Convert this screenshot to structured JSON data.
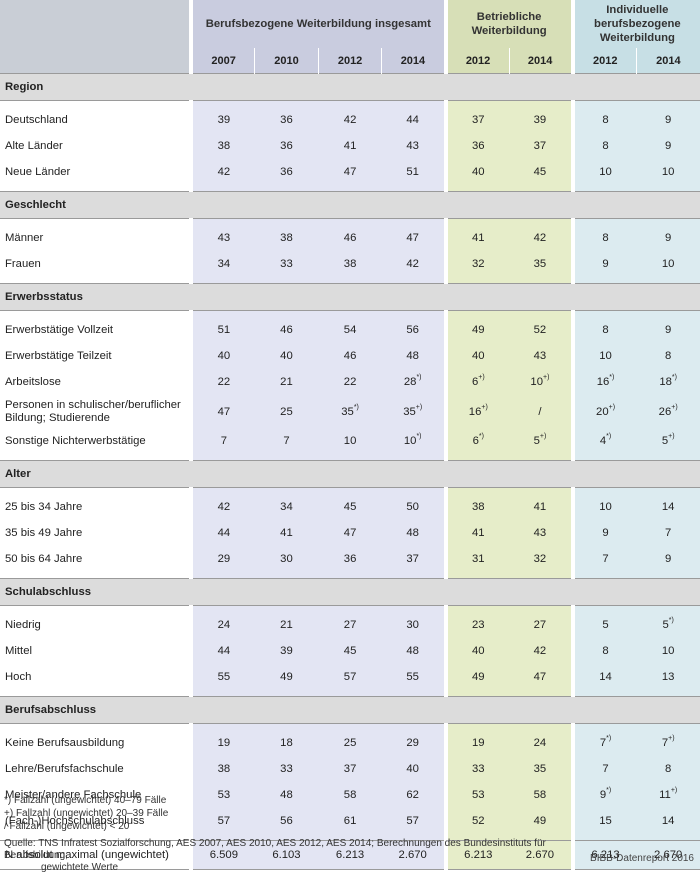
{
  "header": {
    "group1": "Berufsbezogene Weiterbildung insgesamt",
    "group2_line1": "Betriebliche",
    "group2_line2": "Weiterbildung",
    "group3_line1": "Individuelle",
    "group3_line2": "berufsbezogene",
    "group3_line3": "Weiterbildung",
    "years": [
      "2007",
      "2010",
      "2012",
      "2014",
      "2012",
      "2014",
      "2012",
      "2014"
    ]
  },
  "sections": [
    {
      "title": "Region",
      "rows": [
        {
          "label": "Deutschland",
          "values": [
            "39",
            "36",
            "42",
            "44",
            "37",
            "39",
            "8",
            "9"
          ]
        },
        {
          "label": "Alte Länder",
          "values": [
            "38",
            "36",
            "41",
            "43",
            "36",
            "37",
            "8",
            "9"
          ]
        },
        {
          "label": "Neue Länder",
          "values": [
            "42",
            "36",
            "47",
            "51",
            "40",
            "45",
            "10",
            "10"
          ]
        }
      ]
    },
    {
      "title": "Geschlecht",
      "rows": [
        {
          "label": "Männer",
          "values": [
            "43",
            "38",
            "46",
            "47",
            "41",
            "42",
            "8",
            "9"
          ]
        },
        {
          "label": "Frauen",
          "values": [
            "34",
            "33",
            "38",
            "42",
            "32",
            "35",
            "9",
            "10"
          ]
        }
      ]
    },
    {
      "title": "Erwerbsstatus",
      "rows": [
        {
          "label": "Erwerbstätige Vollzeit",
          "values": [
            "51",
            "46",
            "54",
            "56",
            "49",
            "52",
            "8",
            "9"
          ]
        },
        {
          "label": "Erwerbstätige Teilzeit",
          "values": [
            "40",
            "40",
            "46",
            "48",
            "40",
            "43",
            "10",
            "8"
          ]
        },
        {
          "label": "Arbeitslose",
          "values": [
            "22",
            "21",
            "22",
            "28",
            "6",
            "10",
            "16",
            "18"
          ],
          "marks": [
            "",
            "",
            "",
            "*)",
            "+)",
            "+)",
            "*)",
            "*)"
          ]
        },
        {
          "label": "Personen in schulischer/beruflicher Bildung; Studierende",
          "values": [
            "47",
            "25",
            "35",
            "35",
            "16",
            "/",
            "20",
            "26"
          ],
          "marks": [
            "",
            "",
            "*)",
            "+)",
            "+)",
            "",
            "+)",
            "+)"
          ]
        },
        {
          "label": "Sonstige Nichterwerbstätige",
          "values": [
            "7",
            "7",
            "10",
            "10",
            "6",
            "5",
            "4",
            "5"
          ],
          "marks": [
            "",
            "",
            "",
            "*)",
            "*)",
            "+)",
            "*)",
            "+)"
          ]
        }
      ]
    },
    {
      "title": "Alter",
      "rows": [
        {
          "label": "25 bis 34 Jahre",
          "values": [
            "42",
            "34",
            "45",
            "50",
            "38",
            "41",
            "10",
            "14"
          ]
        },
        {
          "label": "35 bis 49 Jahre",
          "values": [
            "44",
            "41",
            "47",
            "48",
            "41",
            "43",
            "9",
            "7"
          ]
        },
        {
          "label": "50 bis 64 Jahre",
          "values": [
            "29",
            "30",
            "36",
            "37",
            "31",
            "32",
            "7",
            "9"
          ]
        }
      ]
    },
    {
      "title": "Schulabschluss",
      "rows": [
        {
          "label": "Niedrig",
          "values": [
            "24",
            "21",
            "27",
            "30",
            "23",
            "27",
            "5",
            "5"
          ],
          "marks": [
            "",
            "",
            "",
            "",
            "",
            "",
            "",
            "*)"
          ]
        },
        {
          "label": "Mittel",
          "values": [
            "44",
            "39",
            "45",
            "48",
            "40",
            "42",
            "8",
            "10"
          ]
        },
        {
          "label": "Hoch",
          "values": [
            "55",
            "49",
            "57",
            "55",
            "49",
            "47",
            "14",
            "13"
          ]
        }
      ]
    },
    {
      "title": "Berufsabschluss",
      "rows": [
        {
          "label": "Keine Berufsausbildung",
          "values": [
            "19",
            "18",
            "25",
            "29",
            "19",
            "24",
            "7",
            "7"
          ],
          "marks": [
            "",
            "",
            "",
            "",
            "",
            "",
            "*)",
            "+)"
          ]
        },
        {
          "label": "Lehre/Berufsfachschule",
          "values": [
            "38",
            "33",
            "37",
            "40",
            "33",
            "35",
            "7",
            "8"
          ]
        },
        {
          "label": "Meister/andere Fachschule",
          "values": [
            "53",
            "48",
            "58",
            "62",
            "53",
            "58",
            "9",
            "11"
          ],
          "marks": [
            "",
            "",
            "",
            "",
            "",
            "",
            "*)",
            "+)"
          ]
        },
        {
          "label": "(Fach-)Hochschulabschluss",
          "values": [
            "57",
            "56",
            "61",
            "57",
            "52",
            "49",
            "15",
            "14"
          ]
        }
      ]
    }
  ],
  "total": {
    "label": "N absolut maximal (ungewichtet)",
    "values": [
      "6.509",
      "6.103",
      "6.213",
      "2.670",
      "6.213",
      "2.670",
      "6.213",
      "2.670"
    ]
  },
  "notes": [
    "*)   Fallzahl (ungewichtet) 40–79 Fälle",
    "+) Fallzahl (ungewichtet) 20–39 Fälle",
    "/    Fallzahl (ungewichtet) < 20"
  ],
  "source_line1": "Quelle: TNS Infratest Sozialforschung, AES 2007, AES 2010, AES 2012, AES 2014; Berechnungen des Bundesinstituts für Berufsbildung,",
  "source_line2": "gewichtete Werte",
  "credit": "BIBB-Datenreport 2016"
}
